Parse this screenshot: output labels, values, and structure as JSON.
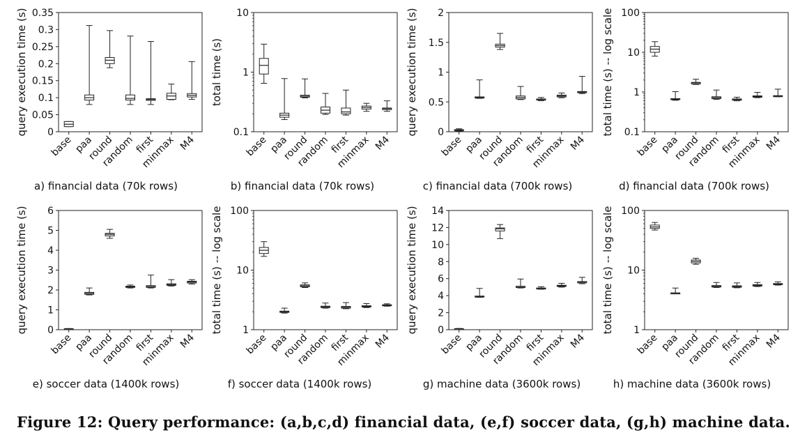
{
  "figure_caption": "Figure 12: Query performance: (a,b,c,d) financial data, (e,f) soccer data, (g,h) machine data.",
  "chart_data": [
    {
      "id": "a",
      "type": "box",
      "title": "a) financial data (70k rows)",
      "ylabel": "query execution time (s)",
      "scale": "linear",
      "ylim": [
        0,
        0.35
      ],
      "yticks": [
        "0",
        "0.05",
        "0.1",
        "0.15",
        "0.2",
        "0.25",
        "0.3",
        "0.35"
      ],
      "yticks_values": [
        0,
        0.05,
        0.1,
        0.15,
        0.2,
        0.25,
        0.3,
        0.35
      ],
      "categories": [
        "base",
        "paa",
        "round",
        "random",
        "first",
        "minmax",
        "M4"
      ],
      "boxes": [
        {
          "min": 0.015,
          "q1": 0.015,
          "median": 0.022,
          "q3": 0.03,
          "max": 0.03
        },
        {
          "min": 0.08,
          "q1": 0.093,
          "median": 0.1,
          "q3": 0.108,
          "max": 0.312
        },
        {
          "min": 0.188,
          "q1": 0.2,
          "median": 0.21,
          "q3": 0.218,
          "max": 0.297
        },
        {
          "min": 0.08,
          "q1": 0.093,
          "median": 0.098,
          "q3": 0.108,
          "max": 0.281
        },
        {
          "min": 0.08,
          "q1": 0.092,
          "median": 0.095,
          "q3": 0.097,
          "max": 0.265
        },
        {
          "min": 0.094,
          "q1": 0.095,
          "median": 0.105,
          "q3": 0.113,
          "max": 0.14
        },
        {
          "min": 0.095,
          "q1": 0.102,
          "median": 0.107,
          "q3": 0.112,
          "max": 0.206
        }
      ]
    },
    {
      "id": "b",
      "type": "box",
      "title": "b) financial data (70k rows)",
      "ylabel": "total time (s)",
      "scale": "log",
      "ylim": [
        0.1,
        10
      ],
      "yticks": [
        "0.1",
        "1",
        "10"
      ],
      "yticks_values": [
        0.1,
        1,
        10
      ],
      "categories": [
        "base",
        "paa",
        "round",
        "random",
        "first",
        "minmax",
        "M4"
      ],
      "boxes": [
        {
          "min": 0.65,
          "q1": 0.93,
          "median": 1.3,
          "q3": 1.7,
          "max": 2.95
        },
        {
          "min": 0.16,
          "q1": 0.175,
          "median": 0.19,
          "q3": 0.205,
          "max": 0.78
        },
        {
          "min": 0.37,
          "q1": 0.38,
          "median": 0.395,
          "q3": 0.41,
          "max": 0.77
        },
        {
          "min": 0.195,
          "q1": 0.205,
          "median": 0.23,
          "q3": 0.26,
          "max": 0.44
        },
        {
          "min": 0.19,
          "q1": 0.2,
          "median": 0.215,
          "q3": 0.25,
          "max": 0.5
        },
        {
          "min": 0.22,
          "q1": 0.24,
          "median": 0.255,
          "q3": 0.27,
          "max": 0.3
        },
        {
          "min": 0.22,
          "q1": 0.235,
          "median": 0.245,
          "q3": 0.25,
          "max": 0.33
        }
      ]
    },
    {
      "id": "c",
      "type": "box",
      "title": "c) financial data (700k rows)",
      "ylabel": "query execution time (s)",
      "scale": "linear",
      "ylim": [
        0,
        2
      ],
      "yticks": [
        "0",
        "0.5",
        "1",
        "1.5",
        "2"
      ],
      "yticks_values": [
        0,
        0.5,
        1,
        1.5,
        2
      ],
      "categories": [
        "base",
        "paa",
        "round",
        "random",
        "first",
        "minmax",
        "M4"
      ],
      "boxes": [
        {
          "min": 0.01,
          "q1": 0.015,
          "median": 0.025,
          "q3": 0.035,
          "max": 0.05
        },
        {
          "min": 0.56,
          "q1": 0.565,
          "median": 0.575,
          "q3": 0.585,
          "max": 0.87
        },
        {
          "min": 1.38,
          "q1": 1.42,
          "median": 1.445,
          "q3": 1.47,
          "max": 1.65
        },
        {
          "min": 0.54,
          "q1": 0.55,
          "median": 0.575,
          "q3": 0.6,
          "max": 0.76
        },
        {
          "min": 0.52,
          "q1": 0.53,
          "median": 0.545,
          "q3": 0.55,
          "max": 0.575
        },
        {
          "min": 0.57,
          "q1": 0.585,
          "median": 0.6,
          "q3": 0.615,
          "max": 0.65
        },
        {
          "min": 0.64,
          "q1": 0.655,
          "median": 0.665,
          "q3": 0.675,
          "max": 0.93
        }
      ]
    },
    {
      "id": "d",
      "type": "box",
      "title": "d) financial data (700k rows)",
      "ylabel": "total time (s) -- log scale",
      "scale": "log",
      "ylim": [
        0.1,
        100
      ],
      "yticks": [
        "0.1",
        "1",
        "10",
        "100"
      ],
      "yticks_values": [
        0.1,
        1,
        10,
        100
      ],
      "categories": [
        "base",
        "paa",
        "round",
        "random",
        "first",
        "minmax",
        "M4"
      ],
      "boxes": [
        {
          "min": 8,
          "q1": 10,
          "median": 12,
          "q3": 14,
          "max": 18.5
        },
        {
          "min": 0.62,
          "q1": 0.64,
          "median": 0.66,
          "q3": 0.68,
          "max": 1.02
        },
        {
          "min": 1.55,
          "q1": 1.6,
          "median": 1.7,
          "q3": 1.75,
          "max": 2.1
        },
        {
          "min": 0.65,
          "q1": 0.68,
          "median": 0.72,
          "q3": 0.76,
          "max": 1.12
        },
        {
          "min": 0.6,
          "q1": 0.62,
          "median": 0.65,
          "q3": 0.67,
          "max": 0.74
        },
        {
          "min": 0.72,
          "q1": 0.74,
          "median": 0.77,
          "q3": 0.8,
          "max": 0.98
        },
        {
          "min": 0.76,
          "q1": 0.77,
          "median": 0.79,
          "q3": 0.81,
          "max": 1.18
        }
      ]
    },
    {
      "id": "e",
      "type": "box",
      "title": "e) soccer data (1400k rows)",
      "ylabel": "query execution time (s)",
      "scale": "linear",
      "ylim": [
        0,
        6
      ],
      "yticks": [
        "0",
        "1",
        "2",
        "3",
        "4",
        "5",
        "6"
      ],
      "yticks_values": [
        0,
        1,
        2,
        3,
        4,
        5,
        6
      ],
      "categories": [
        "base",
        "paa",
        "round",
        "random",
        "first",
        "minmax",
        "M4"
      ],
      "boxes": [
        {
          "min": 0.02,
          "q1": 0.03,
          "median": 0.04,
          "q3": 0.05,
          "max": 0.06
        },
        {
          "min": 1.75,
          "q1": 1.78,
          "median": 1.83,
          "q3": 1.88,
          "max": 2.1
        },
        {
          "min": 4.6,
          "q1": 4.72,
          "median": 4.8,
          "q3": 4.85,
          "max": 5.05
        },
        {
          "min": 2.1,
          "q1": 2.13,
          "median": 2.16,
          "q3": 2.19,
          "max": 2.25
        },
        {
          "min": 2.1,
          "q1": 2.13,
          "median": 2.17,
          "q3": 2.22,
          "max": 2.75
        },
        {
          "min": 2.2,
          "q1": 2.23,
          "median": 2.27,
          "q3": 2.31,
          "max": 2.52
        },
        {
          "min": 2.3,
          "q1": 2.35,
          "median": 2.4,
          "q3": 2.44,
          "max": 2.52
        }
      ]
    },
    {
      "id": "f",
      "type": "box",
      "title": "f) soccer data (1400k rows)",
      "ylabel": "total time (s) -- log scale",
      "scale": "log",
      "ylim": [
        1,
        100
      ],
      "yticks": [
        "1",
        "10",
        "100"
      ],
      "yticks_values": [
        1,
        10,
        100
      ],
      "categories": [
        "base",
        "paa",
        "round",
        "random",
        "first",
        "minmax",
        "M4"
      ],
      "boxes": [
        {
          "min": 17,
          "q1": 19,
          "median": 21.5,
          "q3": 24,
          "max": 30
        },
        {
          "min": 1.9,
          "q1": 1.95,
          "median": 2.0,
          "q3": 2.05,
          "max": 2.3
        },
        {
          "min": 5.1,
          "q1": 5.25,
          "median": 5.45,
          "q3": 5.65,
          "max": 6.1
        },
        {
          "min": 2.3,
          "q1": 2.35,
          "median": 2.42,
          "q3": 2.48,
          "max": 2.8
        },
        {
          "min": 2.25,
          "q1": 2.3,
          "median": 2.38,
          "q3": 2.46,
          "max": 2.85
        },
        {
          "min": 2.35,
          "q1": 2.4,
          "median": 2.46,
          "q3": 2.52,
          "max": 2.75
        },
        {
          "min": 2.48,
          "q1": 2.52,
          "median": 2.57,
          "q3": 2.62,
          "max": 2.72
        }
      ]
    },
    {
      "id": "g",
      "type": "box",
      "title": "g) machine data (3600k rows)",
      "ylabel": "query execution time (s)",
      "scale": "linear",
      "ylim": [
        0,
        14
      ],
      "yticks": [
        "0",
        "2",
        "4",
        "6",
        "8",
        "10",
        "12",
        "14"
      ],
      "yticks_values": [
        0,
        2,
        4,
        6,
        8,
        10,
        12,
        14
      ],
      "categories": [
        "base",
        "paa",
        "round",
        "random",
        "first",
        "minmax",
        "M4"
      ],
      "boxes": [
        {
          "min": 0.05,
          "q1": 0.08,
          "median": 0.1,
          "q3": 0.12,
          "max": 0.15
        },
        {
          "min": 3.8,
          "q1": 3.85,
          "median": 3.9,
          "q3": 3.95,
          "max": 4.85
        },
        {
          "min": 10.7,
          "q1": 11.6,
          "median": 11.85,
          "q3": 11.95,
          "max": 12.35
        },
        {
          "min": 4.9,
          "q1": 4.95,
          "median": 5.0,
          "q3": 5.1,
          "max": 5.95
        },
        {
          "min": 4.75,
          "q1": 4.8,
          "median": 4.85,
          "q3": 4.9,
          "max": 5.05
        },
        {
          "min": 5.0,
          "q1": 5.08,
          "median": 5.15,
          "q3": 5.22,
          "max": 5.45
        },
        {
          "min": 5.4,
          "q1": 5.5,
          "median": 5.6,
          "q3": 5.65,
          "max": 6.15
        }
      ]
    },
    {
      "id": "h",
      "type": "box",
      "title": "h) machine data (3600k rows)",
      "ylabel": "total time (s) -- log scale",
      "scale": "log",
      "ylim": [
        1,
        100
      ],
      "yticks": [
        "1",
        "10",
        "100"
      ],
      "yticks_values": [
        1,
        10,
        100
      ],
      "categories": [
        "base",
        "paa",
        "round",
        "random",
        "first",
        "minmax",
        "M4"
      ],
      "boxes": [
        {
          "min": 47,
          "q1": 50,
          "median": 53,
          "q3": 57,
          "max": 63
        },
        {
          "min": 4.0,
          "q1": 4.05,
          "median": 4.1,
          "q3": 4.15,
          "max": 5.0
        },
        {
          "min": 12.5,
          "q1": 13.2,
          "median": 14,
          "q3": 14.8,
          "max": 15.8
        },
        {
          "min": 5.1,
          "q1": 5.2,
          "median": 5.35,
          "q3": 5.5,
          "max": 6.2
        },
        {
          "min": 5.05,
          "q1": 5.15,
          "median": 5.3,
          "q3": 5.45,
          "max": 6.1
        },
        {
          "min": 5.3,
          "q1": 5.4,
          "median": 5.55,
          "q3": 5.7,
          "max": 6.2
        },
        {
          "min": 5.6,
          "q1": 5.7,
          "median": 5.85,
          "q3": 5.95,
          "max": 6.35
        }
      ]
    }
  ]
}
